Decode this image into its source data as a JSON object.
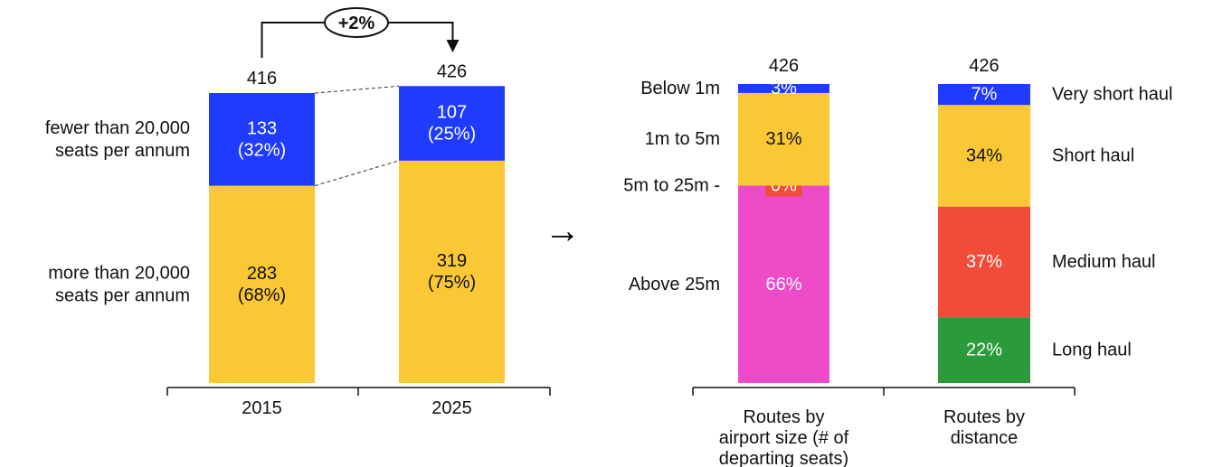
{
  "colors": {
    "blue": "#1f3bff",
    "yellow": "#f9c834",
    "pink": "#ee4bc8",
    "red": "#f24b37",
    "green": "#2b9a3a",
    "axis": "#111111"
  },
  "growth_label": "+2%",
  "arrow_glyph": "→",
  "chart_data": [
    {
      "type": "bar",
      "stacked": true,
      "categories": [
        "2015",
        "2025"
      ],
      "totals": [
        "416",
        "426"
      ],
      "series": [
        {
          "name": "more than 20,000 seats per annum",
          "name_lines": [
            "more than 20,000",
            "seats per annum"
          ],
          "color": "#f9c834",
          "values": [
            283,
            319
          ],
          "labels": [
            [
              "283",
              "(68%)"
            ],
            [
              "319",
              "(75%)"
            ]
          ]
        },
        {
          "name": "fewer than 20,000 seats per annum",
          "name_lines": [
            "fewer than 20,000",
            "seats per annum"
          ],
          "color": "#1f3bff",
          "values": [
            133,
            107
          ],
          "labels": [
            [
              "133",
              "(32%)"
            ],
            [
              "107",
              "(25%)"
            ]
          ]
        }
      ],
      "annotation": "+2%"
    },
    {
      "type": "bar",
      "stacked": true,
      "category_lines": [
        "Routes by",
        "airport size (# of",
        "departing seats)"
      ],
      "total": "426",
      "segments": [
        {
          "name": "Above 25m",
          "value": 66,
          "label": "66%",
          "color": "#ee4bc8"
        },
        {
          "name": "5m to 25m -",
          "value": 0,
          "label": "0%",
          "color": "#f24b37"
        },
        {
          "name": "1m to 5m",
          "value": 31,
          "label": "31%",
          "color": "#f9c834"
        },
        {
          "name": "Below 1m",
          "value": 3,
          "label": "3%",
          "color": "#1f3bff"
        }
      ]
    },
    {
      "type": "bar",
      "stacked": true,
      "category_lines": [
        "Routes by",
        "distance"
      ],
      "total": "426",
      "segments": [
        {
          "name": "Long haul",
          "value": 22,
          "label": "22%",
          "color": "#2b9a3a"
        },
        {
          "name": "Medium haul",
          "value": 37,
          "label": "37%",
          "color": "#f24b37"
        },
        {
          "name": "Short haul",
          "value": 34,
          "label": "34%",
          "color": "#f9c834"
        },
        {
          "name": "Very short haul",
          "value": 7,
          "label": "7%",
          "color": "#1f3bff"
        }
      ]
    }
  ]
}
